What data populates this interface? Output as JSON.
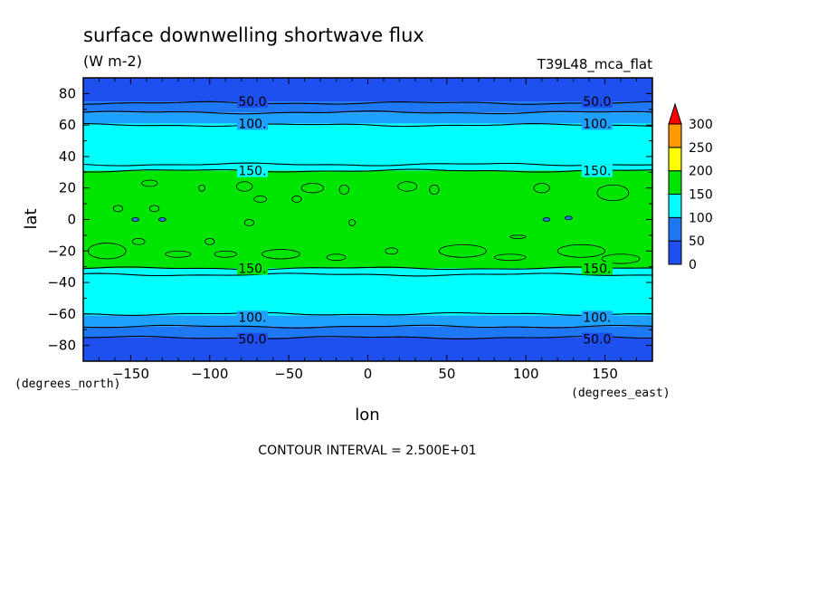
{
  "chart_data": {
    "type": "heatmap",
    "title": "surface downwelling shortwave flux",
    "units": "(W m-2)",
    "run_label": "T39L48_mca_flat",
    "xlabel": "lon",
    "ylabel": "lat",
    "x_units": "(degrees_east)",
    "y_units": "(degrees_north)",
    "xlim": [
      -180,
      180
    ],
    "ylim": [
      -90,
      90
    ],
    "x_ticks": [
      -150,
      -100,
      -50,
      0,
      50,
      100,
      150
    ],
    "y_ticks": [
      -80,
      -60,
      -40,
      -20,
      0,
      20,
      40,
      60,
      80
    ],
    "x_tick_labels": [
      "−150",
      "−100",
      "−50",
      "0",
      "50",
      "100",
      "150"
    ],
    "y_tick_labels": [
      "−80",
      "−60",
      "−40",
      "−20",
      "0",
      "20",
      "40",
      "60",
      "80"
    ],
    "contour_interval_text": "CONTOUR INTERVAL = 2.500E+01",
    "contour_interval": 25,
    "colorbar": {
      "levels": [
        0,
        50,
        100,
        150,
        200,
        250,
        300
      ],
      "level_labels": [
        "0",
        "50",
        "100",
        "150",
        "200",
        "250",
        "300"
      ],
      "colors": [
        "#0066ff",
        "#00ccff",
        "#00ff33",
        "#00ff33",
        "#ffff00",
        "#ff9900"
      ],
      "overflow_color": "#ff0000",
      "extend": "max"
    },
    "band_colors": {
      "below_50": "#1e50f0",
      "50_75": "#1e78f5",
      "75_100": "#1ea0ff",
      "100_150": "#00ffff",
      "150_200": "#00e600"
    },
    "zonal_bands": [
      {
        "lat_from": 75,
        "lat_to": 90,
        "range": "below_50"
      },
      {
        "lat_from": 68,
        "lat_to": 75,
        "range": "50_75"
      },
      {
        "lat_from": 61,
        "lat_to": 68,
        "range": "75_100"
      },
      {
        "lat_from": 31,
        "lat_to": 61,
        "range": "100_150"
      },
      {
        "lat_from": -31,
        "lat_to": 31,
        "range": "150_200"
      },
      {
        "lat_from": -61,
        "lat_to": -31,
        "range": "100_150"
      },
      {
        "lat_from": -68,
        "lat_to": -61,
        "range": "75_100"
      },
      {
        "lat_from": -75,
        "lat_to": -68,
        "range": "50_75"
      },
      {
        "lat_from": -90,
        "lat_to": -75,
        "range": "below_50"
      }
    ],
    "contour_lines": [
      {
        "lat": 74,
        "value": 50
      },
      {
        "lat": 68,
        "value": 75
      },
      {
        "lat": 60,
        "value": 100
      },
      {
        "lat": 35,
        "value": 125
      },
      {
        "lat": 31,
        "value": 150
      },
      {
        "lat": -31,
        "value": 150
      },
      {
        "lat": -35,
        "value": 125
      },
      {
        "lat": -60,
        "value": 100
      },
      {
        "lat": -68,
        "value": 75
      },
      {
        "lat": -75,
        "value": 50
      }
    ],
    "contour_labels": [
      {
        "text": "50.0",
        "lon": -73,
        "lat": 75
      },
      {
        "text": "50.0",
        "lon": 145,
        "lat": 75
      },
      {
        "text": "100.",
        "lon": -73,
        "lat": 61
      },
      {
        "text": "100.",
        "lon": 145,
        "lat": 61
      },
      {
        "text": "150.",
        "lon": -73,
        "lat": 31
      },
      {
        "text": "150.",
        "lon": 145,
        "lat": 31
      },
      {
        "text": "150.",
        "lon": -73,
        "lat": -31
      },
      {
        "text": "150.",
        "lon": 145,
        "lat": -31
      },
      {
        "text": "100.",
        "lon": -73,
        "lat": -62
      },
      {
        "text": "100.",
        "lon": 145,
        "lat": -62
      },
      {
        "text": "50.0",
        "lon": -73,
        "lat": -76
      },
      {
        "text": "50.0",
        "lon": 145,
        "lat": -76
      }
    ],
    "blobs_175": [
      {
        "lon": -158,
        "lat": 7,
        "rlon": 3,
        "rlat": 2
      },
      {
        "lon": -138,
        "lat": 23,
        "rlon": 5,
        "rlat": 2
      },
      {
        "lon": -135,
        "lat": 7,
        "rlon": 3,
        "rlat": 2
      },
      {
        "lon": -105,
        "lat": 20,
        "rlon": 2,
        "rlat": 2
      },
      {
        "lon": -78,
        "lat": 21,
        "rlon": 5,
        "rlat": 3
      },
      {
        "lon": -68,
        "lat": 13,
        "rlon": 4,
        "rlat": 2
      },
      {
        "lon": -45,
        "lat": 13,
        "rlon": 3,
        "rlat": 2
      },
      {
        "lon": -35,
        "lat": 20,
        "rlon": 7,
        "rlat": 3
      },
      {
        "lon": -15,
        "lat": 19,
        "rlon": 3,
        "rlat": 3
      },
      {
        "lon": 25,
        "lat": 21,
        "rlon": 6,
        "rlat": 3
      },
      {
        "lon": 42,
        "lat": 19,
        "rlon": 3,
        "rlat": 3
      },
      {
        "lon": -75,
        "lat": -2,
        "rlon": 3,
        "rlat": 2
      },
      {
        "lon": -10,
        "lat": -2,
        "rlon": 2,
        "rlat": 2
      },
      {
        "lon": 110,
        "lat": 20,
        "rlon": 5,
        "rlat": 3
      },
      {
        "lon": 155,
        "lat": 17,
        "rlon": 10,
        "rlat": 5
      },
      {
        "lon": -165,
        "lat": -20,
        "rlon": 12,
        "rlat": 5
      },
      {
        "lon": -145,
        "lat": -14,
        "rlon": 4,
        "rlat": 2
      },
      {
        "lon": -120,
        "lat": -22,
        "rlon": 8,
        "rlat": 2
      },
      {
        "lon": -90,
        "lat": -22,
        "rlon": 7,
        "rlat": 2
      },
      {
        "lon": -55,
        "lat": -22,
        "rlon": 12,
        "rlat": 3
      },
      {
        "lon": -20,
        "lat": -24,
        "rlon": 6,
        "rlat": 2
      },
      {
        "lon": 15,
        "lat": -20,
        "rlon": 4,
        "rlat": 2
      },
      {
        "lon": 60,
        "lat": -20,
        "rlon": 15,
        "rlat": 4
      },
      {
        "lon": 90,
        "lat": -24,
        "rlon": 10,
        "rlat": 2
      },
      {
        "lon": 135,
        "lat": -20,
        "rlon": 15,
        "rlat": 4
      },
      {
        "lon": 160,
        "lat": -25,
        "rlon": 12,
        "rlat": 3
      },
      {
        "lon": -100,
        "lat": -14,
        "rlon": 3,
        "rlat": 2
      },
      {
        "lon": 95,
        "lat": -11,
        "rlon": 5,
        "rlat": 1
      }
    ],
    "low_spots": [
      {
        "lon": -147,
        "lat": 0
      },
      {
        "lon": -130,
        "lat": 0
      },
      {
        "lon": 113,
        "lat": 0
      },
      {
        "lon": 127,
        "lat": 1
      }
    ]
  }
}
